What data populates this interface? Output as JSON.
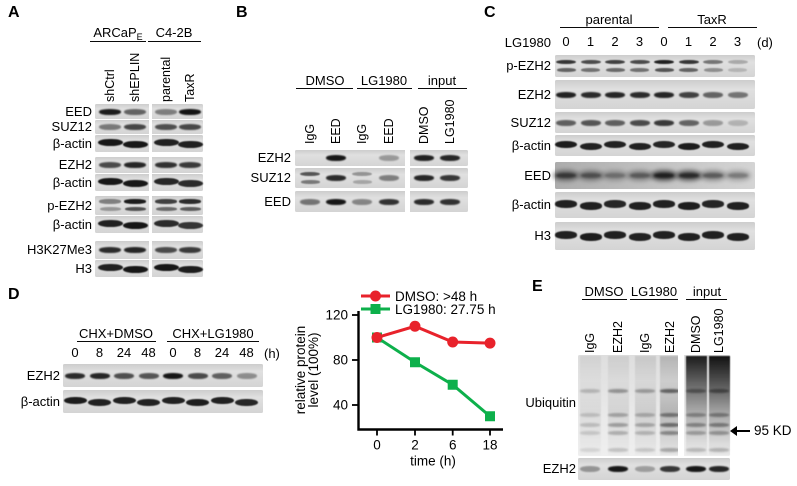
{
  "panels": {
    "A": {
      "letter": "A",
      "groups": [
        {
          "label": "ARCaP",
          "subscript": "E"
        },
        {
          "label": "C4-2B"
        }
      ],
      "lanes": [
        "shCtrl",
        "shEPLIN",
        "parental",
        "TaxR"
      ],
      "rows": [
        {
          "label": "EED",
          "bands": [
            0.92,
            0.58,
            0.45,
            0.97
          ]
        },
        {
          "label": "SUZ12",
          "bands": [
            0.48,
            0.72,
            0.68,
            0.72
          ]
        },
        {
          "label": "β-actin",
          "style": "thick",
          "bands": [
            0.95,
            0.95,
            0.9,
            0.9
          ]
        },
        {
          "label": "EZH2",
          "bands": [
            0.7,
            0.88,
            0.82,
            0.78
          ]
        },
        {
          "label": "β-actin",
          "style": "thick",
          "bands": [
            0.95,
            0.95,
            0.88,
            0.85
          ]
        },
        {
          "label": "p-EZH2",
          "doublet": "all",
          "bands": [
            0.45,
            0.92,
            0.75,
            0.85
          ]
        },
        {
          "label": "β-actin",
          "style": "thick",
          "bands": [
            0.9,
            0.95,
            0.85,
            0.8
          ]
        },
        {
          "label": "H3K27Me3",
          "bands": [
            0.85,
            0.88,
            0.7,
            0.78
          ]
        },
        {
          "label": "H3",
          "style": "thick",
          "bands": [
            0.9,
            0.95,
            0.95,
            0.92
          ]
        }
      ]
    },
    "B": {
      "letter": "B",
      "groups": [
        {
          "label": "DMSO"
        },
        {
          "label": "LG1980"
        },
        {
          "label": "input"
        }
      ],
      "lanes": [
        "IgG",
        "EED",
        "IgG",
        "EED",
        "DMSO",
        "LG1980"
      ],
      "rows": [
        {
          "label": "EZH2",
          "bands": [
            0.03,
            0.95,
            0.03,
            0.32,
            0.9,
            0.88
          ]
        },
        {
          "label": "SUZ12",
          "doublet": [
            0,
            2
          ],
          "bands": [
            0.65,
            0.85,
            0.35,
            0.45,
            0.88,
            0.8
          ]
        },
        {
          "label": "EED",
          "bands": [
            0.5,
            0.95,
            0.42,
            0.82,
            0.85,
            0.82
          ]
        }
      ]
    },
    "C": {
      "letter": "C",
      "groups": [
        {
          "label": "parental"
        },
        {
          "label": "TaxR"
        }
      ],
      "treatment_label": "LG1980",
      "timepoints": [
        "0",
        "1",
        "2",
        "3",
        "0",
        "1",
        "2",
        "3"
      ],
      "time_unit": "(d)",
      "rows": [
        {
          "label": "p-EZH2",
          "doublet": "all",
          "bands": [
            0.8,
            0.7,
            0.75,
            0.7,
            0.9,
            0.8,
            0.5,
            0.25
          ]
        },
        {
          "label": "EZH2",
          "bands": [
            0.9,
            0.85,
            0.88,
            0.85,
            0.88,
            0.75,
            0.58,
            0.5
          ]
        },
        {
          "label": "SUZ12",
          "bands": [
            0.6,
            0.65,
            0.6,
            0.7,
            0.78,
            0.58,
            0.32,
            0.2
          ]
        },
        {
          "label": "β-actin",
          "style": "thick",
          "bands": [
            0.92,
            0.9,
            0.9,
            0.9,
            0.88,
            0.92,
            0.9,
            0.9
          ]
        },
        {
          "label": "EED",
          "style": "smear",
          "bands": [
            0.55,
            0.42,
            0.28,
            0.38,
            0.75,
            0.68,
            0.4,
            0.28
          ]
        },
        {
          "label": "β-actin",
          "style": "thick",
          "bands": [
            0.9,
            0.9,
            0.88,
            0.9,
            0.9,
            0.92,
            0.88,
            0.9
          ]
        },
        {
          "label": "H3",
          "style": "thick",
          "bands": [
            0.9,
            0.92,
            0.9,
            0.9,
            0.9,
            0.9,
            0.9,
            0.9
          ]
        }
      ]
    },
    "D": {
      "letter": "D",
      "groups": [
        {
          "label": "CHX+DMSO"
        },
        {
          "label": "CHX+LG1980"
        }
      ],
      "timepoints": [
        "0",
        "8",
        "24",
        "48",
        "0",
        "8",
        "24",
        "48"
      ],
      "time_unit": "(h)",
      "rows": [
        {
          "label": "EZH2",
          "bands": [
            0.85,
            0.88,
            0.68,
            0.65,
            0.95,
            0.7,
            0.6,
            0.38
          ]
        },
        {
          "label": "β-actin",
          "style": "thick",
          "bands": [
            0.92,
            0.9,
            0.9,
            0.9,
            0.9,
            0.92,
            0.9,
            0.88
          ]
        }
      ]
    },
    "E": {
      "letter": "E",
      "groups": [
        {
          "label": "DMSO"
        },
        {
          "label": "LG1980"
        },
        {
          "label": "input"
        }
      ],
      "lanes": [
        "IgG",
        "EZH2",
        "IgG",
        "EZH2",
        "DMSO",
        "LG1980"
      ],
      "smear_row": {
        "label": "Ubiquitin",
        "lanes": [
          {
            "smear": 0.14,
            "bands": 0.2
          },
          {
            "smear": 0.2,
            "bands": 0.35
          },
          {
            "smear": 0.26,
            "bands": 0.3
          },
          {
            "smear": 0.5,
            "bands": 0.55
          },
          {
            "smear": 0.55,
            "bands": 0.4,
            "top_heavy": true
          },
          {
            "smear": 0.62,
            "bands": 0.45,
            "top_heavy": true
          }
        ]
      },
      "rows": [
        {
          "label": "EZH2",
          "bands": [
            0.35,
            0.95,
            0.3,
            0.8,
            0.95,
            0.88
          ]
        }
      ],
      "size_marker": "95 KD"
    }
  },
  "chart_data": {
    "type": "line",
    "x": [
      "0",
      "2",
      "6",
      "18"
    ],
    "x_spacing": "categorical",
    "xlabel": "time (h)",
    "ylabel": "relative protein level (100%)",
    "ylabel_lines": [
      "relative protein",
      "level (100%)"
    ],
    "yticks": [
      40,
      80,
      120
    ],
    "ylim": [
      18,
      126
    ],
    "grid": false,
    "legend_position": "top",
    "series": [
      {
        "name": "DMSO",
        "legend": "DMSO: >48 h",
        "color": "#e8222b",
        "marker": "circle",
        "values": [
          100,
          110,
          96,
          95
        ]
      },
      {
        "name": "LG1980",
        "legend": "LG1980: 27.75 h",
        "color": "#0db04b",
        "marker": "square",
        "values": [
          100,
          78,
          58,
          30
        ]
      }
    ]
  }
}
